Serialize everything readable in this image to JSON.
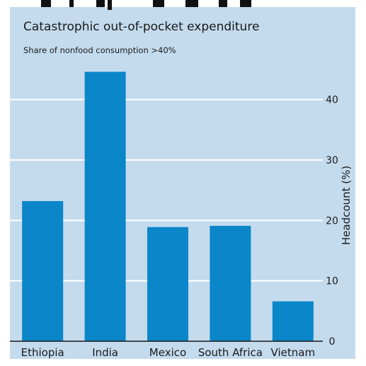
{
  "chart_data": {
    "type": "bar",
    "title": "Catastrophic out-of-pocket expenditure",
    "subtitle": "Share of nonfood consumption >40%",
    "ylabel": "Headcount (%)",
    "xlabel": "",
    "categories": [
      "Ethiopia",
      "India",
      "Mexico",
      "South Africa",
      "Vietnam"
    ],
    "values": [
      23.2,
      44.6,
      18.9,
      19.1,
      6.6
    ],
    "ylim": [
      0,
      45
    ],
    "yticks": [
      "0",
      "10",
      "20",
      "30",
      "40"
    ],
    "y_axis_side": "right",
    "grid": true,
    "colors": {
      "bar": "#0a86c9",
      "grid": "#ffffff",
      "panel": "#c4dbee",
      "axis": "#1a1a1a"
    }
  }
}
